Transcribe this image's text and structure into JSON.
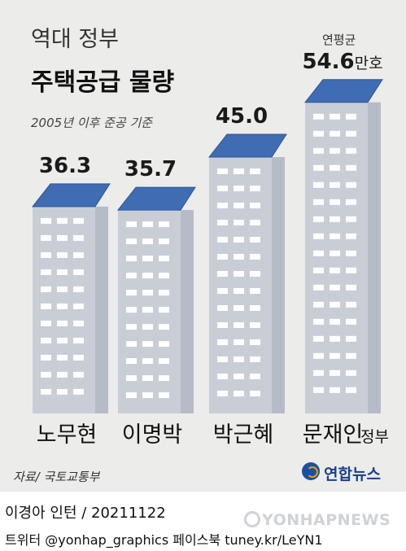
{
  "header": {
    "title_line1": "역대 정부",
    "title_line2": "주택공급 물량",
    "subtitle": "2005년 이후 준공 기준"
  },
  "chart_data": {
    "type": "bar",
    "categories": [
      "노무현",
      "이명박",
      "박근혜",
      "문재인"
    ],
    "category_suffix": "정부",
    "values": [
      36.3,
      35.7,
      45.0,
      54.6
    ],
    "value_labels": [
      "36.3",
      "35.7",
      "45.0",
      "54.6만호"
    ],
    "annotation": "연평균",
    "unit": "만호",
    "colors": {
      "wall": "#c9ced6",
      "roof": "#3f6cb2",
      "window": "#ffffff",
      "card": "#ececea"
    }
  },
  "footer": {
    "source": "자료/ 국토교통부",
    "logo": "연합뉴스",
    "credit": "이경아 인턴 / 20211122",
    "social": "트위터 @yonhap_graphics  페이스북 tuney.kr/LeYN1",
    "watermark": "YONHAPNEWS"
  }
}
